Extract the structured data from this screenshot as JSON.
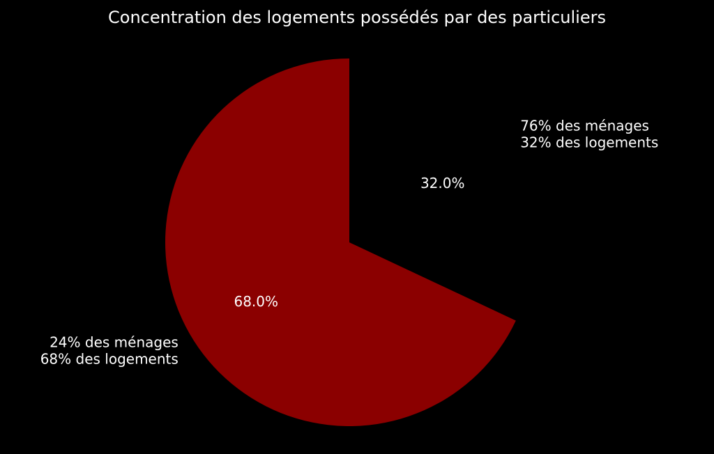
{
  "chart_data": {
    "type": "pie",
    "title": "Concentration des logements possédés par des particuliers",
    "start_angle_deg": 90,
    "direction": "counterclockwise",
    "slices": [
      {
        "value": 68.0,
        "pct_label": "68.0%",
        "label_lines": [
          "24% des ménages",
          "68% des logements"
        ],
        "color": "#8b0000"
      },
      {
        "value": 32.0,
        "pct_label": "32.0%",
        "label_lines": [
          "76% des ménages",
          "32% des logements"
        ],
        "color": "#000000"
      }
    ]
  }
}
